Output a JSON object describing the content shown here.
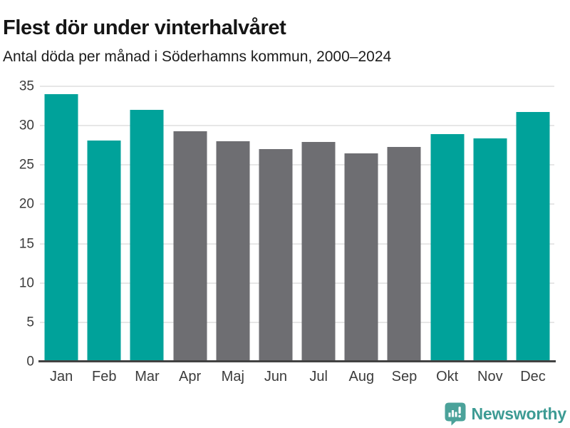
{
  "chart_data": {
    "type": "bar",
    "title": "Flest dör under vinterhalvåret",
    "subtitle": "Antal döda per månad i Söderhamns kommun, 2000–2024",
    "categories": [
      "Jan",
      "Feb",
      "Mar",
      "Apr",
      "Maj",
      "Jun",
      "Jul",
      "Aug",
      "Sep",
      "Okt",
      "Nov",
      "Dec"
    ],
    "values": [
      34.0,
      28.1,
      32.0,
      29.3,
      28.0,
      27.0,
      27.9,
      26.5,
      27.3,
      28.9,
      28.4,
      31.7
    ],
    "bar_colors": [
      "#00a29a",
      "#00a29a",
      "#00a29a",
      "#6e6e72",
      "#6e6e72",
      "#6e6e72",
      "#6e6e72",
      "#6e6e72",
      "#6e6e72",
      "#00a29a",
      "#00a29a",
      "#00a29a"
    ],
    "xlabel": "",
    "ylabel": "",
    "ylim": [
      0,
      35
    ],
    "yticks": [
      0,
      5,
      10,
      15,
      20,
      25,
      30,
      35
    ],
    "grid": true,
    "legend_position": "none",
    "colors": {
      "highlight": "#00a29a",
      "muted": "#6e6e72",
      "gridline": "#e7e7e7",
      "axis_line": "#424242",
      "tick_label": "#3c3c3c",
      "title": "#151515"
    }
  },
  "footer": {
    "brand": "Newsworthy",
    "brand_color": "#3d9b94",
    "icon_color": "#4ba29a",
    "logo_icon": "newsworthy-speech-bubble-bar-chart-icon"
  }
}
